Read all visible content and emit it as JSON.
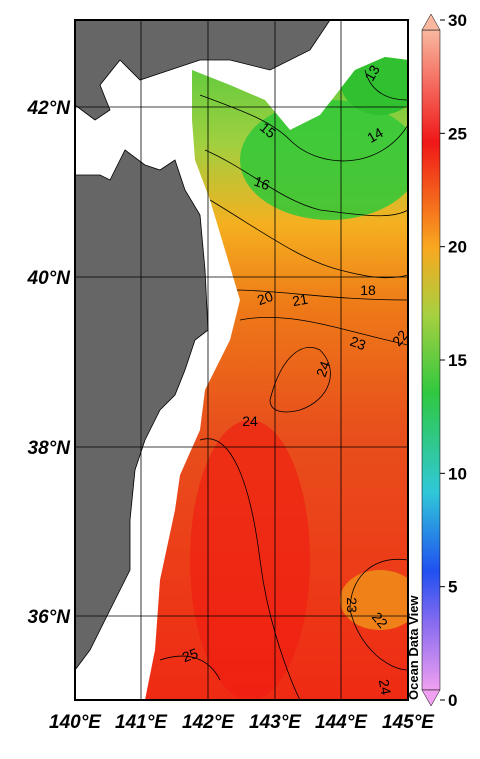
{
  "map": {
    "lon_labels": [
      "140°E",
      "141°E",
      "142°E",
      "143°E",
      "144°E",
      "145°E"
    ],
    "lat_labels": [
      "42°N",
      "40°N",
      "38°N",
      "36°N"
    ],
    "contour_labels": [
      13,
      14,
      15,
      16,
      18,
      20,
      21,
      22,
      23,
      24,
      24,
      23,
      22,
      25,
      24
    ],
    "credit": "Ocean Data View"
  },
  "colorbar": {
    "ticks": [
      0,
      5,
      10,
      15,
      20,
      25,
      30
    ]
  }
}
